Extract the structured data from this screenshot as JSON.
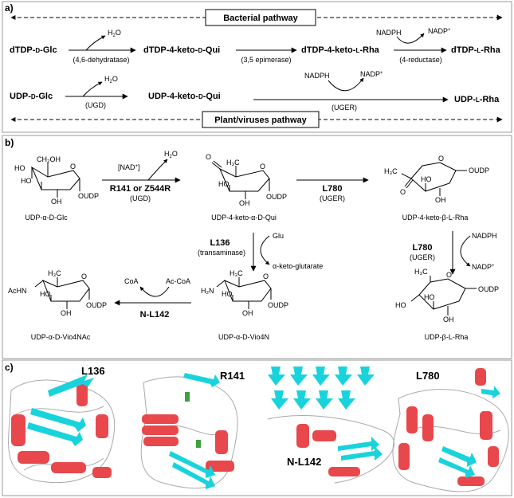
{
  "panel_a": {
    "letter": "a)",
    "bacterial_label": "Bacterial pathway",
    "plant_label": "Plant/viruses pathway",
    "row1": {
      "c1": [
        "dTDP-",
        "D",
        "-Glc"
      ],
      "c2": [
        "dTDP-4-keto-",
        "D",
        "-Qui"
      ],
      "c3": [
        "dTDP-4-keto-",
        "L",
        "-Rha"
      ],
      "c4": [
        "dTDP-",
        "L",
        "-Rha"
      ],
      "h2o": [
        "H",
        "2",
        "O"
      ],
      "enz1": "(4,6-dehydratase)",
      "enz2": "(3,5 epimerase)",
      "enz3": "(4-reductase)",
      "nadph": "NADPH",
      "nadp": [
        "NADP",
        "+"
      ]
    },
    "row2": {
      "c1": [
        "UDP-",
        "D",
        "-Glc"
      ],
      "c2": [
        "UDP-4-keto-",
        "D",
        "-Qui"
      ],
      "c3": [
        "UDP-",
        "L",
        "-Rha"
      ],
      "h2o": [
        "H",
        "2",
        "O"
      ],
      "enz1": "(UGD)",
      "enz2": "(UGER)",
      "nadph": "NADPH",
      "nadp": [
        "NADP",
        "+"
      ]
    }
  },
  "panel_b": {
    "letter": "b)",
    "nad": [
      "[NAD",
      "+",
      "]"
    ],
    "h2o": [
      "H",
      "2",
      "O"
    ],
    "r141": "R141 or Z544R",
    "ugd": "(UGD)",
    "l780": "L780",
    "uger": "(UGER)",
    "l136": "L136",
    "transaminase": "(transaminase)",
    "glu": "Glu",
    "akg": "α-keto-glutarate",
    "nadph": "NADPH",
    "nadp": [
      "NADP",
      "+"
    ],
    "coa": "CoA",
    "accoa": "Ac-CoA",
    "nl142": "N-L142",
    "names": {
      "glc": "UDP-α-D-Glc",
      "qui": "UDP-4-keto-α-D-Qui",
      "rha_keto": "UDP-4-keto-β-L-Rha",
      "vio4n": "UDP-α-D-Vio4N",
      "vio4nac": "UDP-α-D-Vio4NAc",
      "rha": "UDP-β-L-Rha"
    },
    "atoms": {
      "ch2oh": "CH₂OH",
      "oh": "OH",
      "ho": "HO",
      "h3c": "H₃C",
      "o": "O",
      "oudp": "OUDP",
      "udp": "UDP",
      "h2n": "H₂N",
      "achn": "AcHN"
    }
  },
  "panel_c": {
    "letter": "c)",
    "l136": "L136",
    "r141": "R141",
    "nl142": "N-L142",
    "l780": "L780"
  },
  "colors": {
    "helix": "#e8474c",
    "sheet": "#19d3dc",
    "coil": "#aaaaaa",
    "frame": "#999999",
    "panel_bg": "#ffffff"
  }
}
